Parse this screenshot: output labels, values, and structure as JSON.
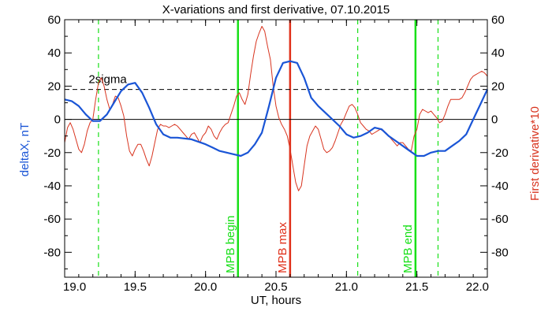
{
  "chart_data": {
    "type": "line",
    "title": "X-variations and first derivative, 07.10.2015",
    "xlabel": "UT, hours",
    "ylabel_left": "deltaX, nT",
    "ylabel_right": "First derivative*10",
    "xlim": [
      19.0,
      22.0
    ],
    "ylim": [
      -95,
      60
    ],
    "x_ticks": [
      19.0,
      19.5,
      20.0,
      20.5,
      21.0,
      21.5,
      22.0
    ],
    "x_tick_labels": [
      "19.0",
      "19.5",
      "20.0",
      "20.5",
      "21.0",
      "21.5",
      "22.0"
    ],
    "y_ticks": [
      60,
      40,
      20,
      0,
      -20,
      -40,
      -60,
      -80
    ],
    "y_tick_labels": [
      "60",
      "40",
      "20",
      "0",
      "-20",
      "-40",
      "-60",
      "-80"
    ],
    "grid": false,
    "colors": {
      "deltaX": "#1a55d6",
      "derivative": "#d8341f",
      "green_marker": "#18e018",
      "red_marker": "#e0301a",
      "axis": "#000000"
    },
    "series": [
      {
        "key": "deltaX",
        "x": [
          19.0,
          19.05,
          19.1,
          19.15,
          19.2,
          19.25,
          19.3,
          19.35,
          19.4,
          19.45,
          19.5,
          19.55,
          19.6,
          19.65,
          19.7,
          19.75,
          19.8,
          19.9,
          20.0,
          20.05,
          20.1,
          20.15,
          20.2,
          20.25,
          20.3,
          20.35,
          20.4,
          20.45,
          20.5,
          20.55,
          20.6,
          20.65,
          20.7,
          20.75,
          20.8,
          20.85,
          20.9,
          20.95,
          21.0,
          21.05,
          21.1,
          21.15,
          21.2,
          21.25,
          21.3,
          21.35,
          21.4,
          21.45,
          21.5,
          21.55,
          21.6,
          21.65,
          21.7,
          21.75,
          21.8,
          21.85,
          21.9,
          21.95,
          22.0
        ],
        "values": [
          12,
          11,
          8,
          3,
          -1,
          -1,
          3,
          10,
          17,
          21,
          22,
          16,
          7,
          -3,
          -9,
          -11,
          -11,
          -12,
          -15,
          -17,
          -19,
          -20,
          -21,
          -22,
          -20,
          -15,
          -8,
          8,
          25,
          34,
          35,
          34,
          25,
          13,
          8,
          4,
          0,
          -4,
          -9,
          -11,
          -10,
          -8,
          -5,
          -6,
          -10,
          -13,
          -16,
          -19,
          -22,
          -22,
          -20,
          -19,
          -19,
          -16,
          -13,
          -9,
          0,
          9,
          18
        ]
      },
      {
        "key": "derivative",
        "x": [
          19.0,
          19.02,
          19.04,
          19.06,
          19.08,
          19.1,
          19.12,
          19.14,
          19.16,
          19.18,
          19.2,
          19.22,
          19.24,
          19.26,
          19.28,
          19.3,
          19.32,
          19.34,
          19.36,
          19.38,
          19.4,
          19.42,
          19.44,
          19.46,
          19.48,
          19.5,
          19.52,
          19.54,
          19.56,
          19.58,
          19.6,
          19.62,
          19.64,
          19.66,
          19.68,
          19.7,
          19.72,
          19.74,
          19.76,
          19.78,
          19.8,
          19.82,
          19.84,
          19.86,
          19.88,
          19.9,
          19.92,
          19.94,
          19.96,
          19.98,
          20.0,
          20.02,
          20.04,
          20.06,
          20.08,
          20.1,
          20.12,
          20.14,
          20.16,
          20.18,
          20.2,
          20.22,
          20.24,
          20.26,
          20.28,
          20.3,
          20.32,
          20.34,
          20.36,
          20.38,
          20.4,
          20.42,
          20.44,
          20.46,
          20.48,
          20.5,
          20.52,
          20.54,
          20.56,
          20.58,
          20.6,
          20.62,
          20.64,
          20.66,
          20.68,
          20.7,
          20.72,
          20.74,
          20.76,
          20.78,
          20.8,
          20.82,
          20.84,
          20.86,
          20.88,
          20.9,
          20.92,
          20.94,
          20.96,
          20.98,
          21.0,
          21.02,
          21.04,
          21.06,
          21.08,
          21.1,
          21.12,
          21.14,
          21.16,
          21.18,
          21.2,
          21.22,
          21.24,
          21.26,
          21.28,
          21.3,
          21.32,
          21.34,
          21.36,
          21.38,
          21.4,
          21.42,
          21.44,
          21.46,
          21.48,
          21.5,
          21.52,
          21.54,
          21.56,
          21.58,
          21.6,
          21.62,
          21.64,
          21.66,
          21.68,
          21.7,
          21.72,
          21.74,
          21.76,
          21.78,
          21.8,
          21.82,
          21.84,
          21.86,
          21.88,
          21.9,
          21.92,
          21.94,
          21.96,
          21.98,
          22.0
        ],
        "values": [
          -14,
          -5,
          -2,
          -6,
          -12,
          -18,
          -20,
          -15,
          -7,
          -2,
          0,
          12,
          22,
          25,
          20,
          12,
          6,
          9,
          14,
          13,
          8,
          2,
          -10,
          -19,
          -22,
          -18,
          -15,
          -15,
          -19,
          -24,
          -28,
          -22,
          -14,
          -6,
          -3,
          -4,
          -4,
          -5,
          -4,
          -3,
          -4,
          -6,
          -8,
          -10,
          -12,
          -9,
          -8,
          -11,
          -14,
          -10,
          -8,
          -4,
          -6,
          -10,
          -12,
          -8,
          -5,
          -3,
          -2,
          3,
          8,
          14,
          16,
          12,
          9,
          15,
          27,
          38,
          47,
          52,
          56,
          53,
          44,
          36,
          20,
          8,
          1,
          -3,
          -6,
          -10,
          -18,
          -28,
          -38,
          -43,
          -40,
          -28,
          -16,
          -10,
          -7,
          -4,
          -6,
          -12,
          -18,
          -20,
          -19,
          -17,
          -13,
          -8,
          -3,
          0,
          4,
          8,
          9,
          7,
          3,
          -2,
          -4,
          -6,
          -7,
          -9,
          -8,
          -7,
          -6,
          -7,
          -8,
          -10,
          -12,
          -14,
          -16,
          -14,
          -14,
          -16,
          -18,
          -19,
          -10,
          -6,
          3,
          6,
          5,
          4,
          5,
          3,
          1,
          -2,
          -1,
          3,
          8,
          12,
          12,
          12,
          12,
          13,
          16,
          20,
          24,
          26,
          27,
          28,
          29,
          28,
          26
        ]
      }
    ],
    "threshold_line": {
      "y": 18,
      "style": "dashed",
      "label": "2sigma"
    },
    "zero_line": {
      "y": 0
    },
    "vertical_markers": [
      {
        "x": 19.24,
        "color": "#18e018",
        "style": "dashed",
        "label": ""
      },
      {
        "x": 20.23,
        "color": "#18e018",
        "style": "solid",
        "label": "MPB begin"
      },
      {
        "x": 20.6,
        "color": "#e0301a",
        "style": "solid",
        "label": "MPB max"
      },
      {
        "x": 21.08,
        "color": "#18e018",
        "style": "dashed",
        "label": ""
      },
      {
        "x": 21.49,
        "color": "#18e018",
        "style": "solid",
        "label": "MPB end"
      },
      {
        "x": 21.65,
        "color": "#18e018",
        "style": "dashed",
        "label": ""
      }
    ]
  }
}
